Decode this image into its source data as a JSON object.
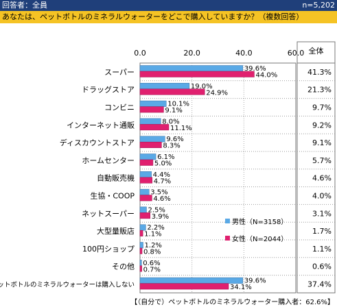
{
  "header": {
    "left": "回答者：全員",
    "right": "n=5,202",
    "question": "あなたは、ペットボトルのミネラルウォーターをどこで購入していますか？（複数回答）"
  },
  "footer": "【（自分で）ペットボトルのミネラルウォーター購入者：62.6%】",
  "chart_data": {
    "type": "bar",
    "orientation": "horizontal",
    "xlim": [
      0,
      60
    ],
    "xticks": [
      "0.0",
      "20.0",
      "40.0",
      "60.0"
    ],
    "total_header": "全体",
    "categories": [
      "スーパー",
      "ドラッグストア",
      "コンビニ",
      "インターネット通販",
      "ディスカウントストア",
      "ホームセンター",
      "自動販売機",
      "生協・COOP",
      "ネットスーパー",
      "大型量販店",
      "100円ショップ",
      "その他",
      "ペットボトルのミネラルウォーターは購入しない"
    ],
    "series": [
      {
        "name": "男性（N=3158）",
        "color": "#5aa9e6",
        "values": [
          39.6,
          19.0,
          10.1,
          8.0,
          9.6,
          6.1,
          4.4,
          3.5,
          2.5,
          2.2,
          1.2,
          0.6,
          39.6
        ],
        "labels": [
          "39.6%",
          "19.0%",
          "10.1%",
          "8.0%",
          "9.6%",
          "6.1%",
          "4.4%",
          "3.5%",
          "2.5%",
          "2.2%",
          "1.2%",
          "0.6%",
          "39.6%"
        ]
      },
      {
        "name": "女性（N=2044）",
        "color": "#e0206f",
        "values": [
          44.0,
          24.9,
          9.1,
          11.1,
          8.3,
          5.0,
          4.7,
          4.6,
          3.9,
          1.1,
          0.8,
          0.7,
          34.1
        ],
        "labels": [
          "44.0%",
          "24.9%",
          "9.1%",
          "11.1%",
          "8.3%",
          "5.0%",
          "4.7%",
          "4.6%",
          "3.9%",
          "1.1%",
          "0.8%",
          "0.7%",
          "34.1%"
        ]
      }
    ],
    "total": [
      "41.3%",
      "21.3%",
      "9.7%",
      "9.2%",
      "9.1%",
      "5.7%",
      "4.6%",
      "4.0%",
      "3.1%",
      "1.7%",
      "1.1%",
      "0.6%",
      "37.4%"
    ],
    "legend_position": "lower-right"
  }
}
